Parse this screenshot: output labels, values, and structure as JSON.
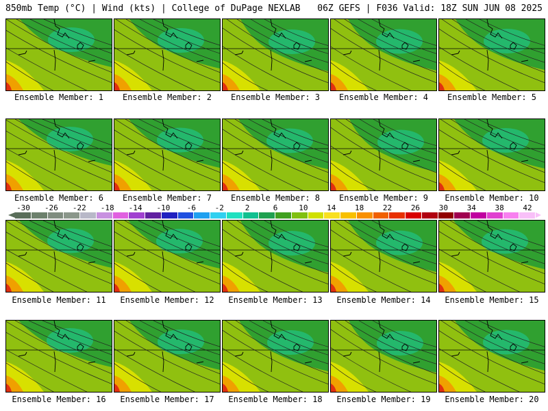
{
  "header": {
    "left_title": "850mb Temp (°C) | Wind (kts) | College of DuPage NEXLAB",
    "right_title": "06Z GEFS | F036 Valid: 18Z SUN JUN 08 2025"
  },
  "members": [
    {
      "label": "Ensemble Member: 1",
      "shift": 0.0
    },
    {
      "label": "Ensemble Member: 2",
      "shift": 0.1
    },
    {
      "label": "Ensemble Member: 3",
      "shift": 0.3
    },
    {
      "label": "Ensemble Member: 4",
      "shift": 0.25
    },
    {
      "label": "Ensemble Member: 5",
      "shift": 0.2
    },
    {
      "label": "Ensemble Member: 6",
      "shift": -0.1
    },
    {
      "label": "Ensemble Member: 7",
      "shift": 0.05
    },
    {
      "label": "Ensemble Member: 8",
      "shift": 0.15
    },
    {
      "label": "Ensemble Member: 9",
      "shift": 0.35
    },
    {
      "label": "Ensemble Member: 10",
      "shift": 0.1
    },
    {
      "label": "Ensemble Member: 11",
      "shift": -0.05
    },
    {
      "label": "Ensemble Member: 12",
      "shift": 0.0
    },
    {
      "label": "Ensemble Member: 13",
      "shift": 0.3
    },
    {
      "label": "Ensemble Member: 14",
      "shift": 0.25
    },
    {
      "label": "Ensemble Member: 15",
      "shift": 0.05
    },
    {
      "label": "Ensemble Member: 16",
      "shift": -0.1
    },
    {
      "label": "Ensemble Member: 17",
      "shift": 0.1
    },
    {
      "label": "Ensemble Member: 18",
      "shift": 0.2
    },
    {
      "label": "Ensemble Member: 19",
      "shift": 0.3
    },
    {
      "label": "Ensemble Member: 20",
      "shift": 0.15
    }
  ],
  "colorbar": {
    "labels": [
      "-30",
      "-26",
      "-22",
      "-18",
      "-14",
      "-10",
      "-6",
      "-2",
      "2",
      "6",
      "10",
      "14",
      "18",
      "22",
      "26",
      "30",
      "34",
      "38",
      "42"
    ],
    "colors": [
      "#5a6e5a",
      "#6c806c",
      "#7f8c7f",
      "#8a968a",
      "#b8b8c8",
      "#c890e0",
      "#e060e0",
      "#a040d0",
      "#6020a0",
      "#2020c0",
      "#2050e0",
      "#20a0f0",
      "#30d0f0",
      "#20e0c0",
      "#10c090",
      "#20a050",
      "#40a020",
      "#80c010",
      "#d0e000",
      "#f8e020",
      "#f8c000",
      "#f89000",
      "#f06000",
      "#e83000",
      "#d80000",
      "#b00010",
      "#900000",
      "#a00050",
      "#c000a0",
      "#e040d0",
      "#f880f0",
      "#f8c0f8"
    ]
  },
  "map_colors": {
    "warm": "#e03010",
    "orange": "#f0a000",
    "yellow": "#d8e000",
    "lightgreen": "#90c010",
    "green": "#30a030",
    "teal": "#20c080"
  }
}
